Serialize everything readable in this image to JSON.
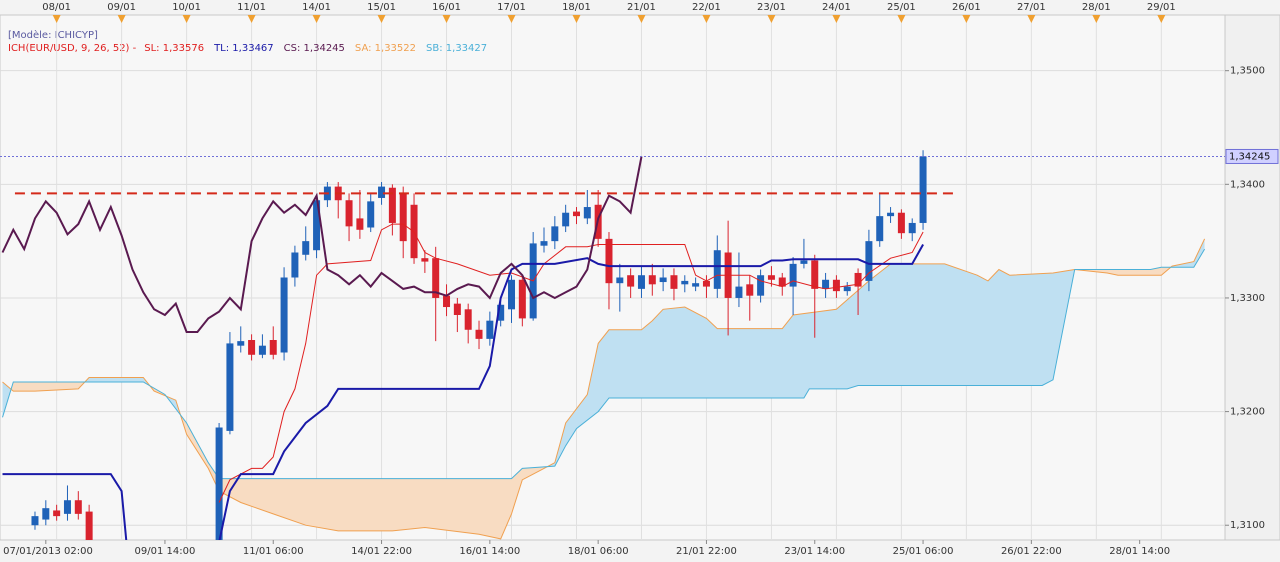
{
  "chart_data": {
    "type": "candlestick",
    "header": "[Modèle: ICHICYP]",
    "indicator": "ICH(EUR/USD, 9, 26, 52) -",
    "xlim": [
      -0.23,
      112.88
    ],
    "ylim": [
      1.3087,
      1.3549
    ],
    "grid": true,
    "yticks": [
      {
        "value": 1.31,
        "label": "1,3100"
      },
      {
        "value": 1.32,
        "label": "1,3200"
      },
      {
        "value": 1.33,
        "label": "1,3300"
      },
      {
        "value": 1.34,
        "label": "1,3400"
      },
      {
        "value": 1.35,
        "label": "1,3500"
      }
    ],
    "xticks": [
      {
        "value": 4,
        "label": "07/01/2013 02:00"
      },
      {
        "value": 15,
        "label": "09/01 14:00"
      },
      {
        "value": 25,
        "label": "11/01 06:00"
      },
      {
        "value": 35,
        "label": "14/01 22:00"
      },
      {
        "value": 45,
        "label": "16/01 14:00"
      },
      {
        "value": 55,
        "label": "18/01 06:00"
      },
      {
        "value": 65,
        "label": "21/01 22:00"
      },
      {
        "value": 75,
        "label": "23/01 14:00"
      },
      {
        "value": 85,
        "label": "25/01 06:00"
      },
      {
        "value": 95,
        "label": "26/01 22:00"
      },
      {
        "value": 105,
        "label": "28/01 14:00"
      }
    ],
    "top_xticks": [
      {
        "value": 5,
        "label": "08/01"
      },
      {
        "value": 11,
        "label": "09/01"
      },
      {
        "value": 17,
        "label": "10/01"
      },
      {
        "value": 23,
        "label": "11/01"
      },
      {
        "value": 29,
        "label": "14/01"
      },
      {
        "value": 35,
        "label": "15/01"
      },
      {
        "value": 41,
        "label": "16/01"
      },
      {
        "value": 47,
        "label": "17/01"
      },
      {
        "value": 53,
        "label": "18/01"
      },
      {
        "value": 59,
        "label": "21/01"
      },
      {
        "value": 65,
        "label": "22/01"
      },
      {
        "value": 71,
        "label": "23/01"
      },
      {
        "value": 77,
        "label": "24/01"
      },
      {
        "value": 83,
        "label": "25/01"
      },
      {
        "value": 89,
        "label": "26/01"
      },
      {
        "value": 95,
        "label": "27/01"
      },
      {
        "value": 101,
        "label": "28/01"
      },
      {
        "value": 107,
        "label": "29/01"
      }
    ],
    "candles": {
      "up_color": "#1f62b8",
      "down_color": "#d9232e",
      "x": [
        3,
        4,
        5,
        6,
        7,
        8,
        20,
        21,
        22,
        23,
        24,
        25,
        26,
        27,
        28,
        29,
        30,
        31,
        32,
        33,
        34,
        35,
        36,
        37,
        38,
        39,
        40,
        41,
        42,
        43,
        44,
        45,
        46,
        47,
        48,
        49,
        50,
        51,
        52,
        53,
        54,
        55,
        56,
        57,
        58,
        59,
        60,
        61,
        62,
        63,
        64,
        65,
        66,
        67,
        68,
        69,
        70,
        71,
        72,
        73,
        74,
        75,
        76,
        77,
        78,
        79,
        80,
        81,
        82,
        83,
        84,
        85
      ],
      "open": [
        1.31,
        1.3105,
        1.3113,
        1.311,
        1.3122,
        1.3112,
        1.307,
        1.3183,
        1.3258,
        1.3263,
        1.325,
        1.3263,
        1.3252,
        1.3318,
        1.3338,
        1.3342,
        1.3386,
        1.3398,
        1.3386,
        1.337,
        1.3362,
        1.3388,
        1.3397,
        1.3392,
        1.3382,
        1.3335,
        1.3335,
        1.3302,
        1.3295,
        1.329,
        1.3272,
        1.3264,
        1.328,
        1.329,
        1.3316,
        1.3282,
        1.3346,
        1.335,
        1.3363,
        1.3376,
        1.337,
        1.3382,
        1.3352,
        1.3313,
        1.332,
        1.3308,
        1.332,
        1.3314,
        1.332,
        1.3312,
        1.331,
        1.3315,
        1.3308,
        1.334,
        1.33,
        1.3312,
        1.3302,
        1.332,
        1.3318,
        1.331,
        1.333,
        1.3333,
        1.3308,
        1.3316,
        1.3306,
        1.3322,
        1.3315,
        1.335,
        1.3372,
        1.3375,
        1.3357,
        1.3366
      ],
      "high": [
        1.3112,
        1.3122,
        1.3118,
        1.3135,
        1.313,
        1.3118,
        1.319,
        1.327,
        1.3275,
        1.3268,
        1.3268,
        1.3275,
        1.3327,
        1.3346,
        1.3363,
        1.339,
        1.3402,
        1.3402,
        1.3392,
        1.3395,
        1.3392,
        1.3402,
        1.34,
        1.3398,
        1.3392,
        1.3342,
        1.3345,
        1.3312,
        1.33,
        1.3295,
        1.328,
        1.3288,
        1.33,
        1.332,
        1.332,
        1.3358,
        1.3362,
        1.3372,
        1.3382,
        1.338,
        1.3395,
        1.3395,
        1.3358,
        1.333,
        1.3326,
        1.3328,
        1.333,
        1.3326,
        1.3326,
        1.332,
        1.3318,
        1.332,
        1.3355,
        1.3368,
        1.334,
        1.332,
        1.3325,
        1.3328,
        1.3322,
        1.3336,
        1.3352,
        1.3338,
        1.3322,
        1.332,
        1.3314,
        1.3326,
        1.336,
        1.3392,
        1.338,
        1.3378,
        1.337,
        1.343
      ],
      "low": [
        1.3096,
        1.31,
        1.3104,
        1.3104,
        1.3105,
        1.307,
        1.306,
        1.318,
        1.3252,
        1.3245,
        1.3247,
        1.3246,
        1.3245,
        1.331,
        1.3333,
        1.3335,
        1.338,
        1.337,
        1.335,
        1.3352,
        1.3358,
        1.3382,
        1.3355,
        1.3335,
        1.333,
        1.3322,
        1.3262,
        1.3284,
        1.327,
        1.326,
        1.3255,
        1.3258,
        1.3275,
        1.3278,
        1.3275,
        1.328,
        1.334,
        1.3343,
        1.3358,
        1.3365,
        1.3365,
        1.3345,
        1.329,
        1.3288,
        1.33,
        1.33,
        1.3302,
        1.3306,
        1.3298,
        1.3305,
        1.3306,
        1.33,
        1.33,
        1.3267,
        1.3292,
        1.328,
        1.3296,
        1.331,
        1.3302,
        1.3285,
        1.3326,
        1.3265,
        1.33,
        1.33,
        1.3302,
        1.3285,
        1.3306,
        1.3345,
        1.3366,
        1.3352,
        1.335,
        1.336
      ],
      "close": [
        1.3108,
        1.3115,
        1.3108,
        1.3122,
        1.311,
        1.308,
        1.3186,
        1.326,
        1.3262,
        1.325,
        1.3258,
        1.325,
        1.3318,
        1.334,
        1.335,
        1.3386,
        1.3398,
        1.3386,
        1.3363,
        1.336,
        1.3385,
        1.3398,
        1.3366,
        1.335,
        1.3335,
        1.3332,
        1.33,
        1.3292,
        1.3285,
        1.3272,
        1.3264,
        1.328,
        1.3294,
        1.3316,
        1.3282,
        1.3348,
        1.335,
        1.3363,
        1.3375,
        1.3372,
        1.338,
        1.3352,
        1.3313,
        1.3318,
        1.331,
        1.332,
        1.3312,
        1.3318,
        1.3308,
        1.3315,
        1.3313,
        1.331,
        1.3342,
        1.33,
        1.331,
        1.3302,
        1.332,
        1.3316,
        1.331,
        1.333,
        1.3333,
        1.3308,
        1.3316,
        1.3306,
        1.331,
        1.331,
        1.335,
        1.3372,
        1.3375,
        1.3357,
        1.3366,
        1.34245
      ]
    },
    "series": [
      {
        "name": "SL: 1,33576",
        "color": "#e02020",
        "width": 1,
        "x": [
          20,
          21,
          23,
          24,
          25,
          26,
          27,
          28,
          29,
          30,
          34,
          35,
          36,
          37,
          38,
          39,
          40,
          42,
          45,
          47,
          49,
          50,
          52,
          54,
          55,
          63,
          64,
          65,
          66,
          67,
          69,
          70,
          72,
          73,
          75,
          76,
          79,
          80,
          82,
          84,
          85
        ],
        "values": [
          1.312,
          1.314,
          1.315,
          1.315,
          1.316,
          1.32,
          1.322,
          1.326,
          1.332,
          1.333,
          1.3333,
          1.336,
          1.3365,
          1.3365,
          1.3358,
          1.334,
          1.3335,
          1.333,
          1.332,
          1.3322,
          1.3315,
          1.333,
          1.3345,
          1.3345,
          1.3347,
          1.3347,
          1.332,
          1.3315,
          1.332,
          1.332,
          1.332,
          1.3315,
          1.331,
          1.3315,
          1.331,
          1.3308,
          1.3312,
          1.3322,
          1.3335,
          1.334,
          1.3358
        ]
      },
      {
        "name": "TL: 1,33467",
        "color": "#1a1aa8",
        "width": 2,
        "x": [
          0,
          10,
          11,
          11.5,
          null,
          20,
          21,
          22,
          25,
          26,
          28,
          30,
          31,
          44,
          45,
          46,
          47,
          48,
          51,
          54,
          55,
          56,
          70,
          71,
          72,
          73,
          79,
          80,
          84,
          85
        ],
        "values": [
          1.3145,
          1.3145,
          1.313,
          1.308,
          null,
          1.3085,
          1.313,
          1.3145,
          1.3145,
          1.3165,
          1.319,
          1.3205,
          1.322,
          1.322,
          1.324,
          1.33,
          1.3325,
          1.333,
          1.333,
          1.3335,
          1.333,
          1.3328,
          1.3328,
          1.3333,
          1.3333,
          1.3334,
          1.3334,
          1.333,
          1.333,
          1.3347
        ]
      },
      {
        "name": "CS: 1,34245",
        "color": "#5a1a50",
        "width": 2,
        "x": [
          0,
          1,
          2,
          3,
          4,
          5,
          6,
          7,
          8,
          9,
          10,
          11,
          12,
          13,
          14,
          15,
          16,
          17,
          18,
          19,
          20,
          21,
          22,
          23,
          24,
          25,
          26,
          27,
          28,
          29,
          30,
          31,
          32,
          33,
          34,
          35,
          36,
          37,
          38,
          39,
          40,
          41,
          42,
          43,
          44,
          45,
          46,
          47,
          48,
          49,
          50,
          51,
          52,
          53,
          54,
          55,
          56,
          57,
          58,
          59
        ],
        "values": [
          1.334,
          1.336,
          1.3343,
          1.337,
          1.3385,
          1.3375,
          1.3356,
          1.3365,
          1.3385,
          1.336,
          1.338,
          1.3355,
          1.3325,
          1.3305,
          1.329,
          1.3285,
          1.3295,
          1.327,
          1.327,
          1.3282,
          1.3288,
          1.33,
          1.329,
          1.335,
          1.337,
          1.3385,
          1.3375,
          1.3382,
          1.3373,
          1.339,
          1.3325,
          1.332,
          1.3312,
          1.332,
          1.331,
          1.3322,
          1.3315,
          1.3308,
          1.331,
          1.3305,
          1.3305,
          1.3302,
          1.3308,
          1.3312,
          1.331,
          1.33,
          1.3322,
          1.333,
          1.332,
          1.33,
          1.3305,
          1.33,
          1.3305,
          1.331,
          1.3325,
          1.337,
          1.339,
          1.3385,
          1.3375,
          1.34245
        ]
      },
      {
        "name": "SA: 1,33522",
        "color": "#f0a050",
        "width": 1,
        "x": [
          0,
          1,
          3,
          7,
          8,
          13,
          14,
          16,
          17,
          19,
          20,
          22,
          25,
          28,
          31,
          36,
          39,
          44,
          46,
          47,
          48,
          50,
          51,
          52,
          54,
          55,
          56,
          59,
          60,
          61,
          63,
          65,
          66,
          72,
          73,
          77,
          80,
          82,
          87,
          90,
          91,
          92,
          93,
          97,
          99,
          102,
          103,
          107,
          108,
          110,
          111
        ],
        "values": [
          1.3226,
          1.3218,
          1.3218,
          1.322,
          1.323,
          1.323,
          1.3218,
          1.321,
          1.318,
          1.315,
          1.313,
          1.312,
          1.311,
          1.31,
          1.3095,
          1.3095,
          1.3098,
          1.3092,
          1.3088,
          1.311,
          1.314,
          1.315,
          1.3155,
          1.319,
          1.3215,
          1.326,
          1.3272,
          1.3272,
          1.328,
          1.329,
          1.3292,
          1.3282,
          1.3273,
          1.3273,
          1.3285,
          1.329,
          1.3315,
          1.333,
          1.333,
          1.332,
          1.3315,
          1.3325,
          1.332,
          1.3322,
          1.3325,
          1.3322,
          1.332,
          1.332,
          1.3328,
          1.3332,
          1.3352
        ]
      },
      {
        "name": "SB: 1,33427",
        "color": "#4ab0d8",
        "width": 1,
        "x": [
          0,
          1,
          13,
          15,
          17,
          19,
          20,
          47,
          48,
          51,
          52,
          53,
          55,
          56,
          74,
          74.5,
          78,
          79,
          96,
          97,
          99,
          106,
          107,
          110,
          111
        ],
        "values": [
          1.3195,
          1.3226,
          1.3226,
          1.3215,
          1.319,
          1.3155,
          1.3141,
          1.3141,
          1.315,
          1.3152,
          1.317,
          1.3185,
          1.32,
          1.3212,
          1.3212,
          1.322,
          1.322,
          1.3223,
          1.3223,
          1.3228,
          1.3325,
          1.3325,
          1.3327,
          1.3327,
          1.3343
        ]
      }
    ],
    "cloud": {
      "up_color": "#bfe0f2",
      "down_color": "#f8dcc2"
    },
    "hline": {
      "value": 1.3392,
      "x": [
        1.15,
        88.2
      ],
      "color": "#d42a1a"
    },
    "last_price": {
      "value": 1.34245,
      "label": "1,34245",
      "color": "#7070d8"
    }
  }
}
